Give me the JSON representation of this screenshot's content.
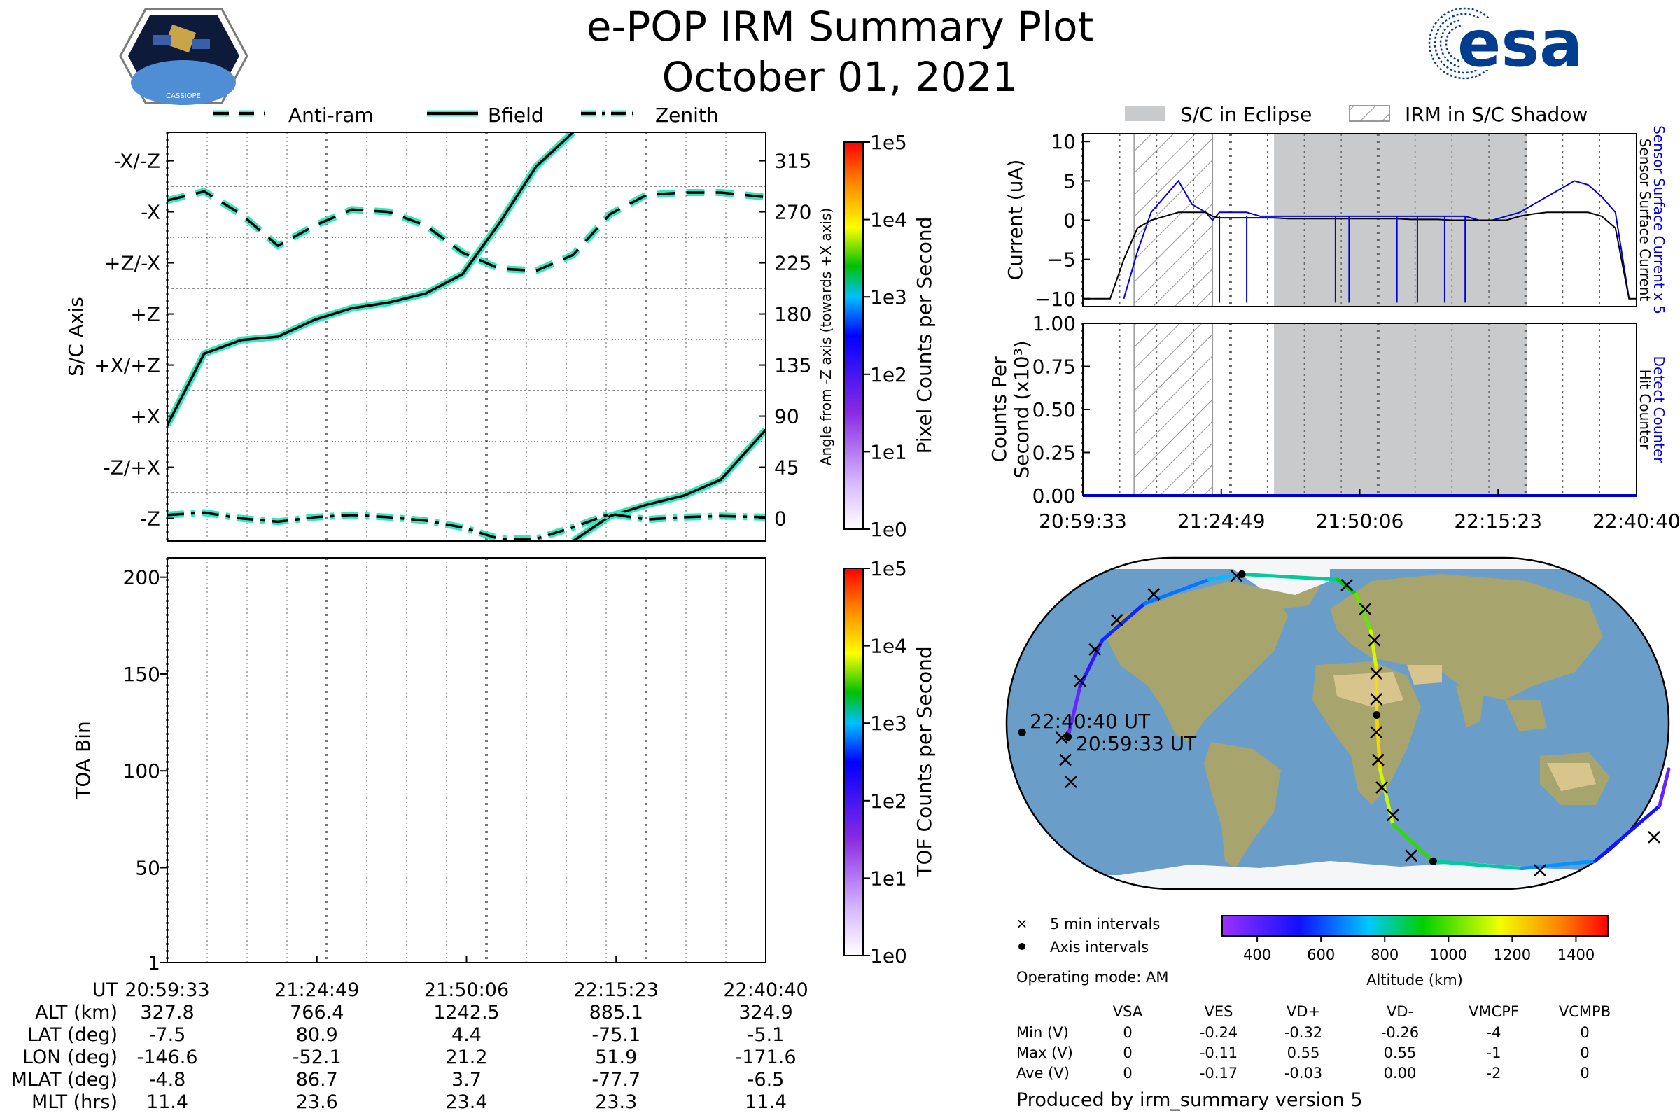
{
  "header": {
    "title": "e-POP IRM Summary Plot",
    "date": "October 01, 2021",
    "mission_logo_text": "CASSIOPE",
    "esa_logo_text": "esa"
  },
  "left_legend": [
    "Anti-ram",
    "Bfield",
    "Zenith"
  ],
  "right_legend": [
    "S/C in Eclipse",
    "IRM in S/C Shadow"
  ],
  "ut_ticks": [
    "20:59:33",
    "21:24:49",
    "21:50:06",
    "22:15:23",
    "22:40:40"
  ],
  "chart_data": [
    {
      "id": "attitude",
      "type": "line",
      "ylabel": "S/C Axis",
      "ylabel_right": "Angle from -Z axis (towards +X axis)",
      "axis_labels": [
        "-Z",
        "-Z/+X",
        "+X",
        "+X/+Z",
        "+Z",
        "+Z/-X",
        "-X",
        "-X/-Z"
      ],
      "angle_ticks": [
        0,
        45,
        90,
        135,
        180,
        225,
        270,
        315
      ],
      "ylim": [
        -20,
        340
      ],
      "x": [
        0,
        5,
        10,
        15,
        20,
        25,
        30,
        35,
        40,
        45,
        50,
        55,
        60,
        65,
        70,
        75,
        81.1
      ],
      "series": [
        {
          "name": "Anti-ram",
          "style": "dashed",
          "values": [
            280,
            288,
            268,
            240,
            258,
            272,
            270,
            258,
            234,
            220,
            218,
            232,
            268,
            285,
            287,
            287,
            283
          ]
        },
        {
          "name": "Bfield",
          "style": "solid",
          "values": [
            82,
            145,
            157,
            160,
            175,
            185,
            190,
            198,
            215,
            260,
            310,
            340,
            null,
            null,
            null,
            null,
            null
          ]
        },
        {
          "name": "Bfield",
          "style": "solid",
          "values": [
            null,
            null,
            null,
            null,
            null,
            null,
            null,
            null,
            null,
            null,
            null,
            -20,
            2,
            12,
            20,
            34,
            78
          ]
        },
        {
          "name": "Zenith",
          "style": "dashdot",
          "values": [
            3,
            5,
            0,
            -3,
            1,
            3,
            1,
            -2,
            -8,
            -18,
            -18,
            -8,
            4,
            -1,
            1,
            2,
            1
          ]
        }
      ]
    },
    {
      "id": "toa",
      "type": "heatmap",
      "ylabel": "TOA Bin",
      "yticks": [
        1,
        50,
        100,
        150,
        200
      ],
      "ylim": [
        1,
        210
      ],
      "values": []
    },
    {
      "id": "current",
      "type": "line",
      "ylabel": "Current (uA)",
      "right_label_1": "Sensor Surface Current x 5",
      "right_label_2": "Sensor Surface Current",
      "yticks": [
        -10,
        -5,
        0,
        5,
        10
      ],
      "ylim": [
        -11,
        11
      ],
      "x": [
        0,
        4,
        6,
        8,
        10,
        12,
        14,
        16,
        18,
        19,
        20,
        22,
        24,
        26,
        28,
        30,
        32,
        34,
        36,
        38,
        40,
        42,
        44,
        46,
        48,
        50,
        52,
        54,
        56,
        58,
        60,
        62,
        64,
        66,
        68,
        70,
        72,
        74,
        76,
        78,
        80,
        81.1
      ],
      "series": [
        {
          "name": "Sensor Surface Current x 5",
          "values": [
            null,
            null,
            -10,
            -4,
            1,
            3,
            5,
            2,
            1,
            0,
            1,
            1,
            1,
            0.5,
            0.5,
            0.5,
            0.5,
            0.5,
            0.5,
            0.5,
            0.5,
            0.5,
            0.5,
            0.5,
            0.5,
            0.5,
            0.5,
            0.5,
            0.5,
            0,
            0,
            0.5,
            1,
            2,
            3,
            4,
            5,
            4.5,
            3,
            1,
            -10,
            null
          ]
        },
        {
          "name": "Sensor Surface Current",
          "values": [
            -10,
            -10,
            -5,
            -1,
            0,
            0.5,
            1,
            1,
            1,
            0.5,
            0.3,
            0.3,
            0.3,
            0.3,
            0.3,
            0.2,
            0.2,
            0.2,
            0.2,
            0.2,
            0.2,
            0.2,
            0.2,
            0.2,
            0.1,
            0.1,
            0.1,
            0,
            0,
            0,
            0,
            0,
            0.5,
            0.8,
            1,
            1,
            1,
            1,
            0.5,
            -1,
            -10,
            -10
          ]
        }
      ]
    },
    {
      "id": "counts",
      "type": "line",
      "ylabel": "Counts Per Second (x10³)",
      "right_label_1": "Detect Counter",
      "right_label_2": "Hit Counter",
      "yticks": [
        "0.00",
        "0.25",
        "0.50",
        "0.75",
        "1.00"
      ],
      "ylim": [
        0,
        1
      ],
      "x": [
        0,
        81.1
      ],
      "series": [
        {
          "name": "Detect Counter",
          "values": [
            0,
            0
          ]
        }
      ]
    }
  ],
  "colorbars": [
    {
      "label": "Pixel Counts per Second",
      "ticks": [
        "1e0",
        "1e1",
        "1e2",
        "1e3",
        "1e4",
        "1e5"
      ]
    },
    {
      "label": "TOF Counts per Second",
      "ticks": [
        "1e0",
        "1e1",
        "1e2",
        "1e3",
        "1e4",
        "1e5"
      ]
    }
  ],
  "altitude_colorbar": {
    "label": "Altitude (km)",
    "ticks": [
      400,
      600,
      800,
      1000,
      1200,
      1400
    ],
    "range": [
      290,
      1500
    ]
  },
  "map": {
    "start_label": "20:59:33 UT",
    "end_label": "22:40:40 UT",
    "legend_cross": "5 min intervals",
    "legend_dot": "Axis intervals",
    "track": [
      {
        "lon": -146.6,
        "lat": -7.5,
        "alt": 328
      },
      {
        "lon": -140,
        "lat": 20,
        "alt": 420
      },
      {
        "lon": -128,
        "lat": 45,
        "alt": 520
      },
      {
        "lon": -105,
        "lat": 65,
        "alt": 600
      },
      {
        "lon": -70,
        "lat": 78,
        "alt": 700
      },
      {
        "lon": -52.1,
        "lat": 80.9,
        "alt": 766
      },
      {
        "lon": 0,
        "lat": 78,
        "alt": 870
      },
      {
        "lon": 10,
        "lat": 70,
        "alt": 960
      },
      {
        "lon": 18,
        "lat": 50,
        "alt": 1080
      },
      {
        "lon": 21,
        "lat": 30,
        "alt": 1180
      },
      {
        "lon": 21.2,
        "lat": 4.4,
        "alt": 1242
      },
      {
        "lon": 23,
        "lat": -25,
        "alt": 1200
      },
      {
        "lon": 30,
        "lat": -55,
        "alt": 1050
      },
      {
        "lon": 51.9,
        "lat": -75.1,
        "alt": 885
      },
      {
        "lon": 100,
        "lat": -79,
        "alt": 750
      },
      {
        "lon": 140,
        "lat": -75,
        "alt": 620
      },
      {
        "lon": 175,
        "lat": -45,
        "alt": 450
      },
      {
        "lon": -171.6,
        "lat": -5.1,
        "alt": 325
      }
    ],
    "crosses": [
      {
        "lon": -150,
        "lat": -8
      },
      {
        "lon": -148,
        "lat": -20
      },
      {
        "lon": -145,
        "lat": -32
      },
      {
        "lon": -140,
        "lat": 23
      },
      {
        "lon": -132,
        "lat": 40
      },
      {
        "lon": -120,
        "lat": 56
      },
      {
        "lon": -100,
        "lat": 70
      },
      {
        "lon": -55,
        "lat": 80
      },
      {
        "lon": 5,
        "lat": 75
      },
      {
        "lon": 15,
        "lat": 62
      },
      {
        "lon": 20,
        "lat": 45
      },
      {
        "lon": 21,
        "lat": 27
      },
      {
        "lon": 21,
        "lat": 13
      },
      {
        "lon": 21,
        "lat": -5
      },
      {
        "lon": 22,
        "lat": -20
      },
      {
        "lon": 24,
        "lat": -35
      },
      {
        "lon": 30,
        "lat": -50
      },
      {
        "lon": 40,
        "lat": -72
      },
      {
        "lon": 110,
        "lat": -80
      },
      {
        "lon": 172,
        "lat": -62
      }
    ],
    "dots": [
      {
        "lon": -146.6,
        "lat": -7.5
      },
      {
        "lon": -52.1,
        "lat": 80.9
      },
      {
        "lon": 21.2,
        "lat": 4.4
      },
      {
        "lon": 51.9,
        "lat": -75.1
      },
      {
        "lon": -171.6,
        "lat": -5.1
      }
    ]
  },
  "operating_mode": "Operating mode: AM",
  "voltage_table": {
    "columns": [
      "VSA",
      "VES",
      "VD+",
      "VD-",
      "VMCPF",
      "VCMPB"
    ],
    "rows": [
      {
        "label": "Min (V)",
        "values": [
          "0",
          "-0.24",
          "-0.32",
          "-0.26",
          "-4",
          "0"
        ]
      },
      {
        "label": "Max (V)",
        "values": [
          "0",
          "-0.11",
          "0.55",
          "0.55",
          "-1",
          "0"
        ]
      },
      {
        "label": "Ave (V)",
        "values": [
          "0",
          "-0.17",
          "-0.03",
          "0.00",
          "-2",
          "0"
        ]
      }
    ]
  },
  "ephemeris": {
    "rows": [
      {
        "label": "UT",
        "values": [
          "20:59:33",
          "21:24:49",
          "21:50:06",
          "22:15:23",
          "22:40:40"
        ]
      },
      {
        "label": "ALT (km)",
        "values": [
          "327.8",
          "766.4",
          "1242.5",
          "885.1",
          "324.9"
        ]
      },
      {
        "label": "LAT (deg)",
        "values": [
          "-7.5",
          "80.9",
          "4.4",
          "-75.1",
          "-5.1"
        ]
      },
      {
        "label": "LON (deg)",
        "values": [
          "-146.6",
          "-52.1",
          "21.2",
          "51.9",
          "-171.6"
        ]
      },
      {
        "label": "MLAT (deg)",
        "values": [
          "-4.8",
          "86.7",
          "3.7",
          "-77.7",
          "-6.5"
        ]
      },
      {
        "label": "MLT (hrs)",
        "values": [
          "11.4",
          "23.6",
          "23.4",
          "23.3",
          "11.4"
        ]
      }
    ]
  },
  "footer": "Produced by irm_summary version 5",
  "colors": {
    "attitude_line": "#000000",
    "attitude_glow": "#2ee8c0",
    "eclipse": "#c8cacb",
    "current_x5": "#0000dd",
    "esa_blue": "#003d8f",
    "ocean": "#6a9ec9"
  }
}
